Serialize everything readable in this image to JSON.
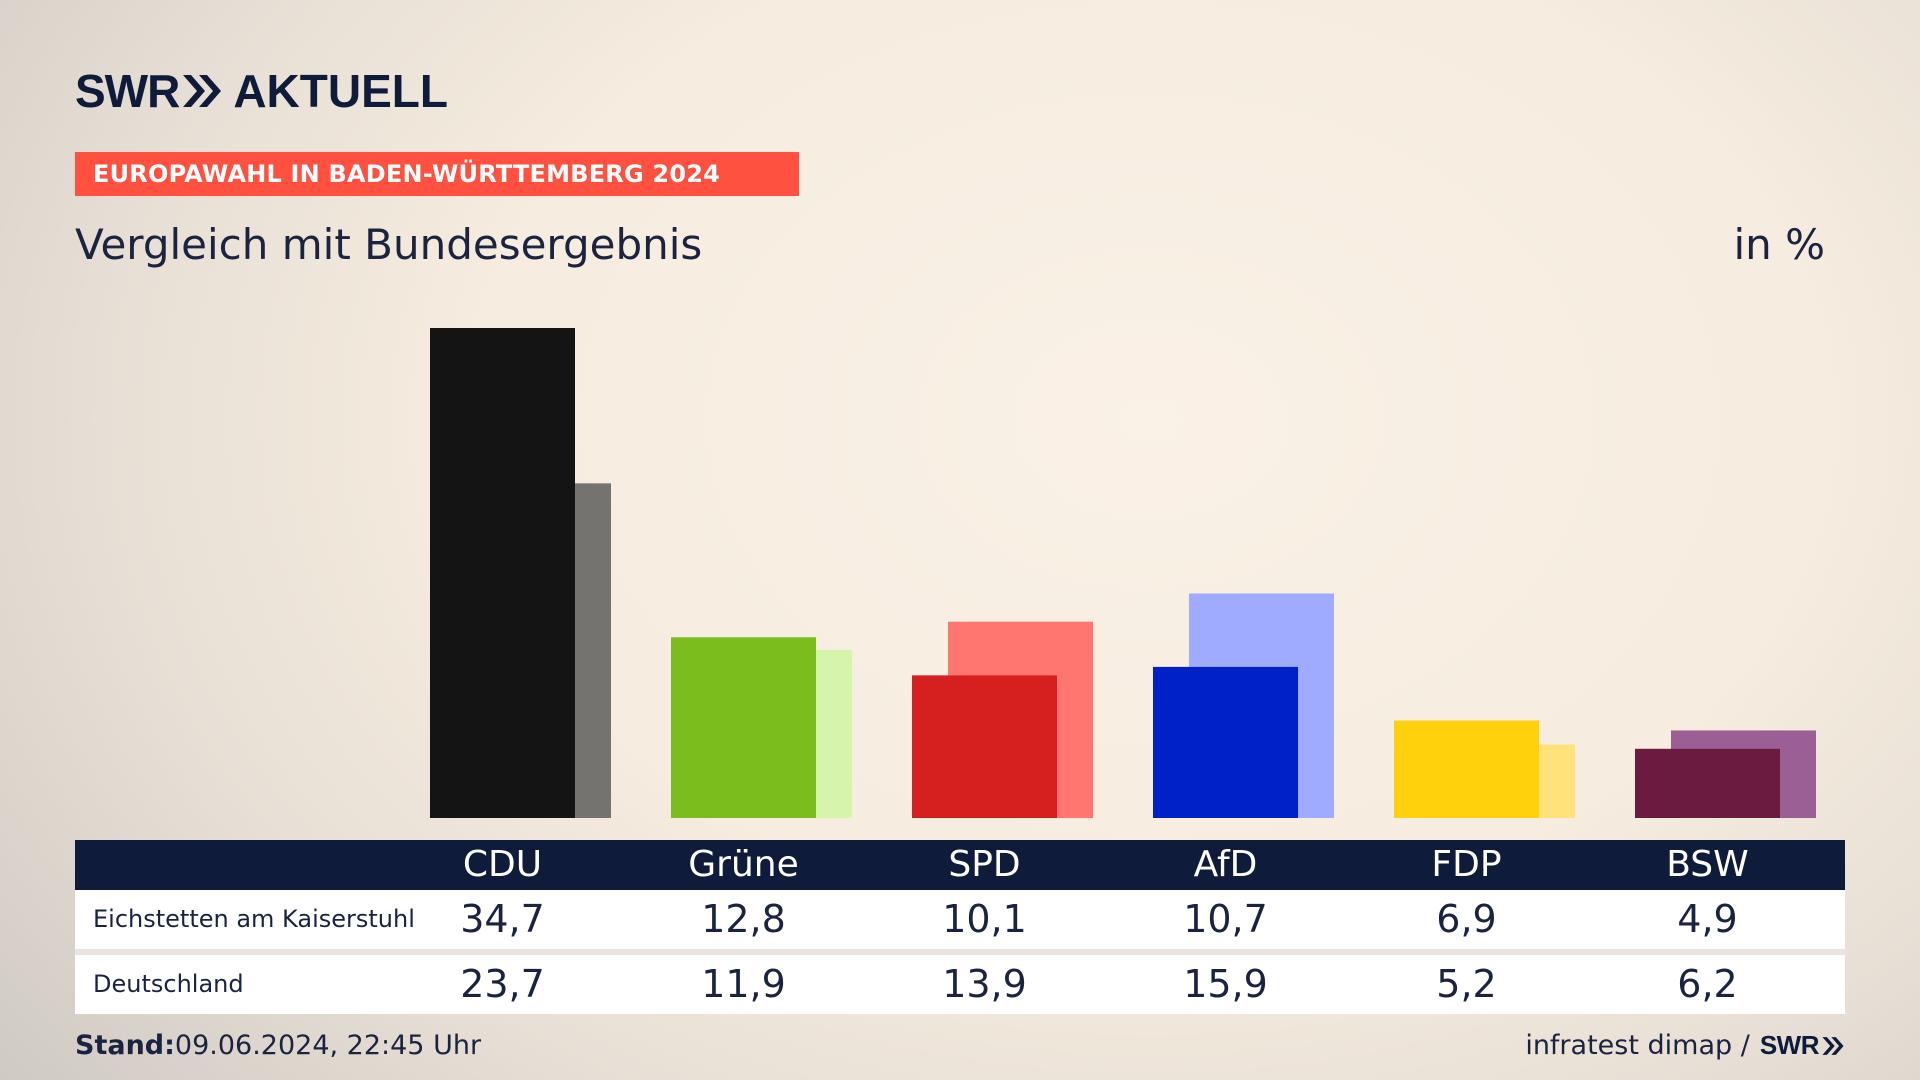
{
  "header": {
    "brand_left": "SWR",
    "brand_right": "AKTUELL",
    "banner": "EUROPAWAHL IN BADEN-WÜRTTEMBERG 2024",
    "subtitle": "Vergleich mit Bundesergebnis",
    "unit": "in %"
  },
  "chart_data": {
    "type": "bar",
    "categories": [
      "CDU",
      "Grüne",
      "SPD",
      "AfD",
      "FDP",
      "BSW"
    ],
    "series": [
      {
        "name": "Eichstetten am Kaiserstuhl",
        "values": [
          34.7,
          12.8,
          10.1,
          10.7,
          6.9,
          4.9
        ]
      },
      {
        "name": "Deutschland",
        "values": [
          23.7,
          11.9,
          13.9,
          15.9,
          5.2,
          6.2
        ]
      }
    ],
    "colors_primary": [
      "#141414",
      "#7abd1d",
      "#d61f1f",
      "#0021c8",
      "#ffd10d",
      "#6b1a40"
    ],
    "colors_secondary": [
      "#757370",
      "#d6f5aa",
      "#ff7570",
      "#9eabff",
      "#ffe27a",
      "#9b5f96"
    ],
    "ylim": [
      0,
      35
    ],
    "grid": false,
    "legend": "table-bottom"
  },
  "table": {
    "rows": [
      {
        "label": "Eichstetten am Kaiserstuhl",
        "values": [
          "34,7",
          "12,8",
          "10,1",
          "10,7",
          "6,9",
          "4,9"
        ]
      },
      {
        "label": "Deutschland",
        "values": [
          "23,7",
          "11,9",
          "13,9",
          "15,9",
          "5,2",
          "6,2"
        ]
      }
    ]
  },
  "footer": {
    "stand_label": "Stand:",
    "stand_value": "09.06.2024, 22:45 Uhr",
    "source": "infratest dimap /",
    "source_brand": "SWR"
  }
}
